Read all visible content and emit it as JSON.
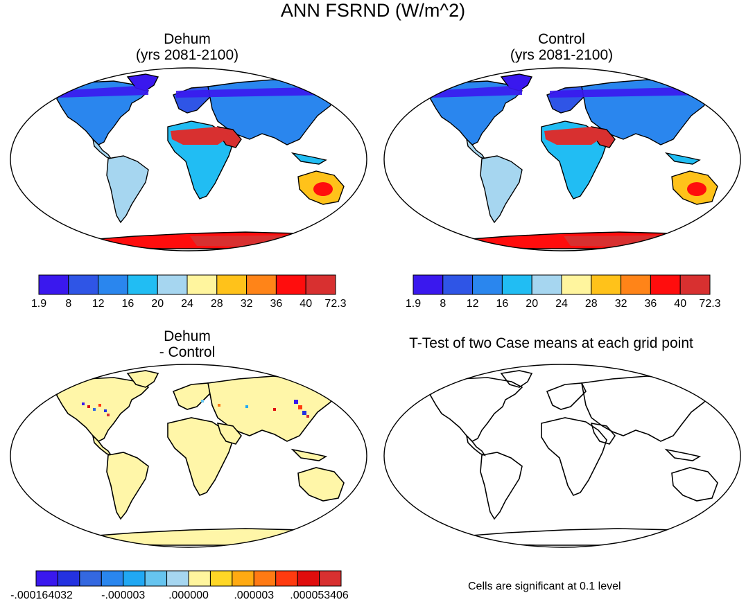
{
  "figure": {
    "title": "ANN FSRND (W/m^2)"
  },
  "panels": [
    {
      "title_line1": "Dehum",
      "title_line2": "(yrs 2081-2100)"
    },
    {
      "title_line1": "Control",
      "title_line2": "(yrs 2081-2100)"
    },
    {
      "title_line1": "Dehum",
      "title_line2": "- Control"
    },
    {
      "title_line1": "T-Test of two Case means at each grid point",
      "title_line2": ""
    }
  ],
  "colorbars": {
    "absolute": {
      "colors": [
        "#3a18ee",
        "#2f55e6",
        "#2a86ee",
        "#21bdf3",
        "#a6d6f0",
        "#fff59e",
        "#ffc21a",
        "#ff8418",
        "#ff0d0d",
        "#d83030"
      ],
      "labels": [
        "1.9",
        "8",
        "12",
        "16",
        "20",
        "24",
        "28",
        "32",
        "36",
        "40",
        "72.3"
      ]
    },
    "difference": {
      "colors": [
        "#3a18ee",
        "#2432e0",
        "#3468e0",
        "#2a86ee",
        "#21a8f3",
        "#66c4ef",
        "#a6d6f0",
        "#fff59e",
        "#ffd726",
        "#ffaa12",
        "#ff7a14",
        "#ff3b10",
        "#e00d0d",
        "#d83030"
      ],
      "labels": [
        "-.000164032",
        "-.000003",
        ".000000",
        ".000003",
        ".000053406"
      ]
    }
  },
  "note": "Cells are significant at 0.1 level",
  "chart_data": [
    {
      "type": "heatmap",
      "title": "Dehum (yrs 2081-2100)",
      "levels": [
        1.9,
        8,
        12,
        16,
        20,
        24,
        28,
        32,
        36,
        40,
        72.3
      ],
      "units": "W/m^2"
    },
    {
      "type": "heatmap",
      "title": "Control (yrs 2081-2100)",
      "levels": [
        1.9,
        8,
        12,
        16,
        20,
        24,
        28,
        32,
        36,
        40,
        72.3
      ],
      "units": "W/m^2"
    },
    {
      "type": "heatmap",
      "title": "Dehum - Control",
      "levels": [
        "-.000164032",
        "-.000003",
        ".000000",
        ".000003",
        ".000053406"
      ],
      "units": "W/m^2"
    },
    {
      "type": "heatmap",
      "title": "T-Test of two Case means at each grid point",
      "significance_level": 0.1
    }
  ]
}
